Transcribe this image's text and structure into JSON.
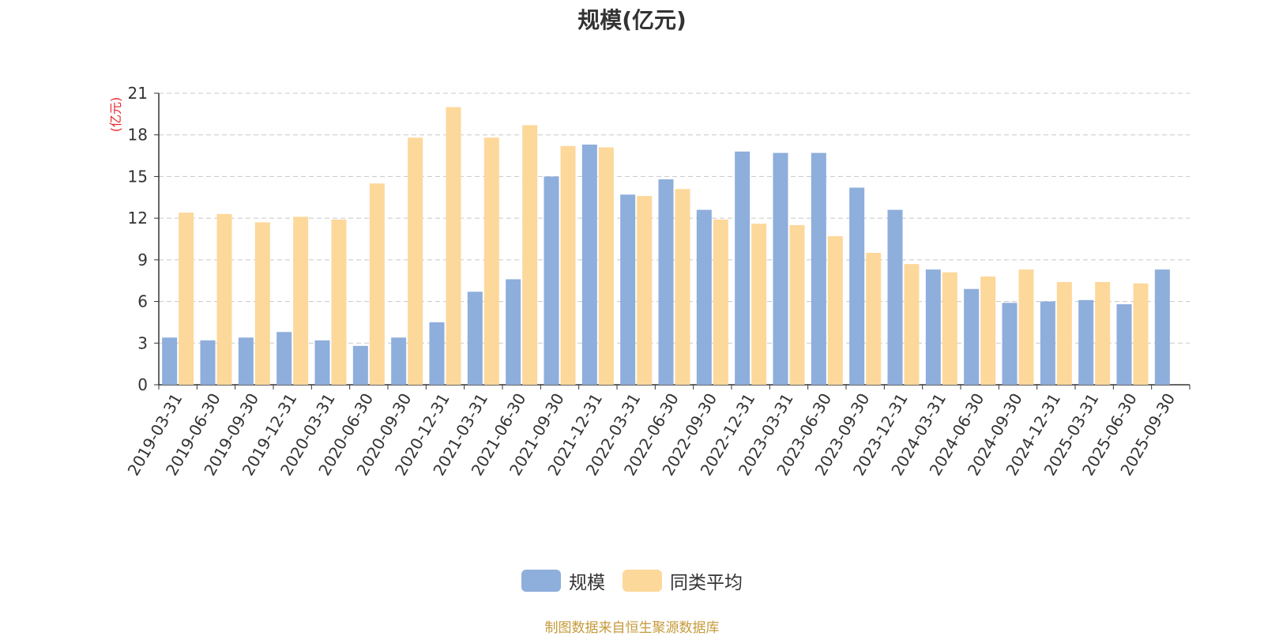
{
  "chart_data": {
    "type": "bar",
    "title": "规模(亿元)",
    "ylabel": "(亿元)",
    "ylim": [
      0,
      21
    ],
    "yticks": [
      0,
      3,
      6,
      9,
      12,
      15,
      18,
      21
    ],
    "grid": true,
    "legend_position": "bottom",
    "categories": [
      "2019-03-31",
      "2019-06-30",
      "2019-09-30",
      "2019-12-31",
      "2020-03-31",
      "2020-06-30",
      "2020-09-30",
      "2020-12-31",
      "2021-03-31",
      "2021-06-30",
      "2021-09-30",
      "2021-12-31",
      "2022-03-31",
      "2022-06-30",
      "2022-09-30",
      "2022-12-31",
      "2023-03-31",
      "2023-06-30",
      "2023-09-30",
      "2023-12-31",
      "2024-03-31",
      "2024-06-30",
      "2024-09-30",
      "2024-12-31",
      "2025-03-31",
      "2025-06-30",
      "2025-09-30"
    ],
    "series": [
      {
        "name": "规模",
        "color": "#8eaedc",
        "values": [
          3.4,
          3.2,
          3.4,
          3.8,
          3.2,
          2.8,
          3.4,
          4.5,
          6.7,
          7.6,
          15.0,
          17.3,
          13.7,
          14.8,
          12.6,
          16.8,
          16.7,
          16.7,
          14.2,
          12.6,
          8.3,
          6.9,
          5.9,
          6.0,
          6.1,
          5.8,
          8.3
        ]
      },
      {
        "name": "同类平均",
        "color": "#fdd89b",
        "values": [
          12.4,
          12.3,
          11.7,
          12.1,
          11.9,
          14.5,
          17.8,
          20.0,
          17.8,
          18.7,
          17.2,
          17.1,
          13.6,
          14.1,
          11.9,
          11.6,
          11.5,
          10.7,
          9.5,
          8.7,
          8.1,
          7.8,
          8.3,
          7.4,
          7.4,
          7.3,
          null
        ]
      }
    ]
  },
  "colors": {
    "unit_label": "#e8272d",
    "source_text": "#c59a3b",
    "axis": "#333333",
    "grid": "#c8c8c8"
  },
  "source_text": "制图数据来自恒生聚源数据库"
}
